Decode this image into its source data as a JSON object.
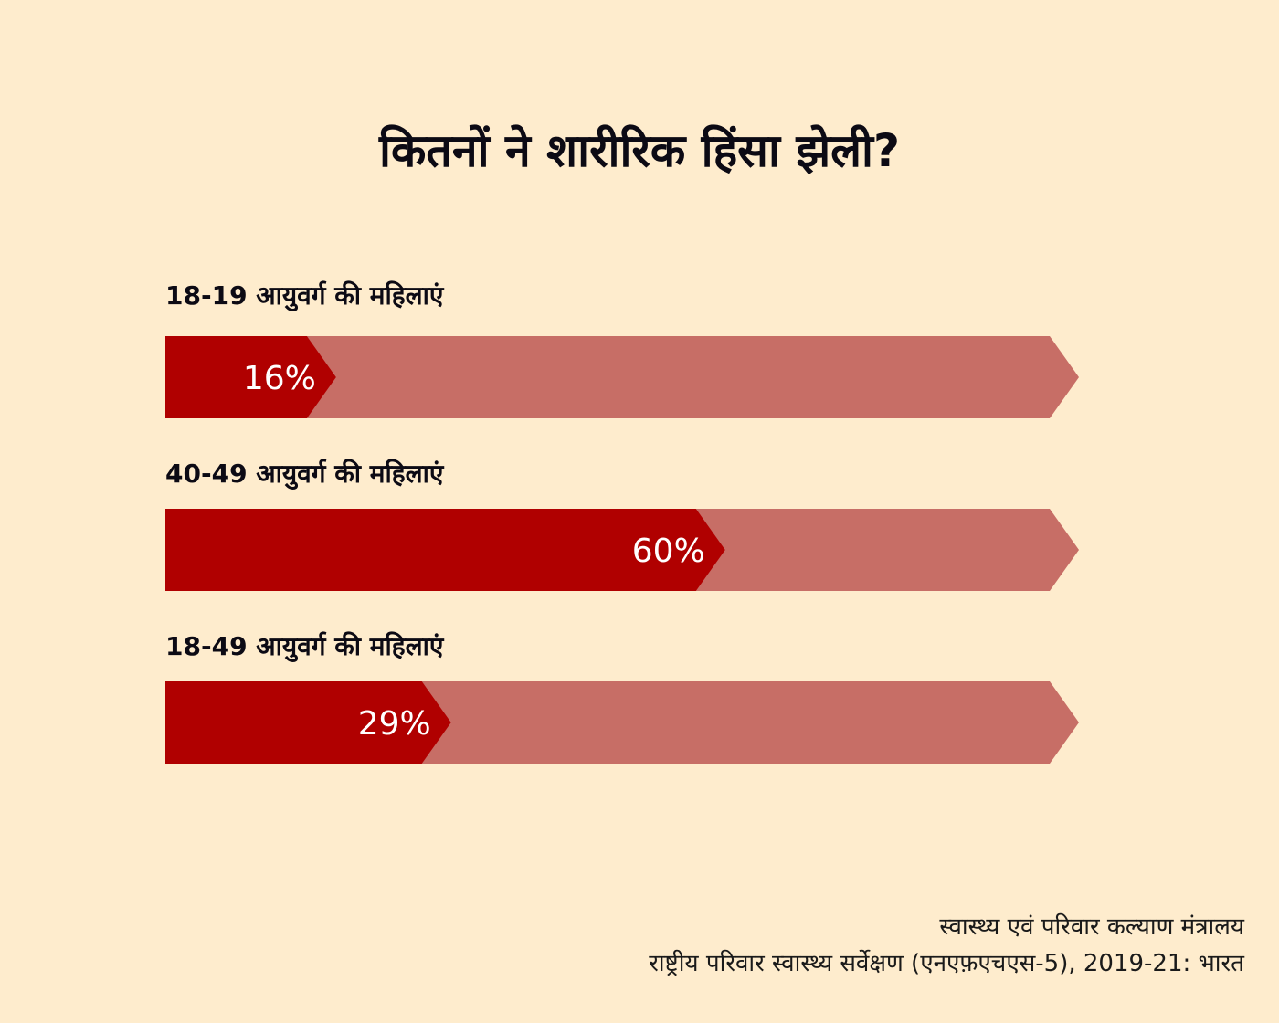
{
  "chart_data": {
    "type": "bar",
    "title": "कितनों ने शारीरिक हिंसा झेली?",
    "categories": [
      "18-19 आयुवर्ग की महिलाएं",
      "40-49 आयुवर्ग की महिलाएं",
      "18-49 आयुवर्ग की महिलाएं"
    ],
    "values": [
      16,
      60,
      29
    ],
    "value_labels": [
      "16%",
      "60%",
      "29%"
    ],
    "unit": "%",
    "ylim": [
      0,
      100
    ],
    "orientation": "horizontal",
    "colors": {
      "value": "#b00000",
      "remainder": "#c76e66"
    }
  },
  "source": {
    "line1": "स्वास्थ्य एवं परिवार कल्याण मंत्रालय",
    "line2": "राष्ट्रीय परिवार स्वास्थ्य सर्वेक्षण (एनएफ़एचएस-5), 2019-21: भारत"
  }
}
